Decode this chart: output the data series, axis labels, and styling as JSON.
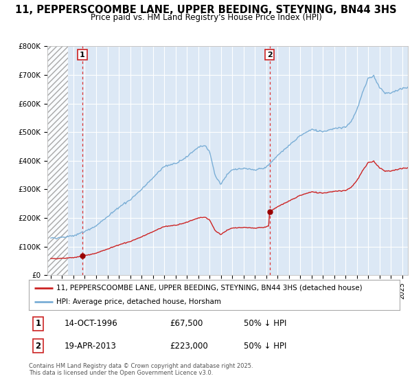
{
  "title": "11, PEPPERSCOOMBE LANE, UPPER BEEDING, STEYNING, BN44 3HS",
  "subtitle": "Price paid vs. HM Land Registry's House Price Index (HPI)",
  "ylim": [
    0,
    800000
  ],
  "yticks": [
    0,
    100000,
    200000,
    300000,
    400000,
    500000,
    600000,
    700000,
    800000
  ],
  "ytick_labels": [
    "£0",
    "£100K",
    "£200K",
    "£300K",
    "£400K",
    "£500K",
    "£600K",
    "£700K",
    "£800K"
  ],
  "xlim_start": 1993.7,
  "xlim_end": 2025.5,
  "hatch_end": 1995.5,
  "sale1_date": 1996.79,
  "sale1_price": 67500,
  "sale2_date": 2013.3,
  "sale2_price": 223000,
  "red_line_color": "#cc2222",
  "blue_line_color": "#7aaed6",
  "sale_dot_color": "#990000",
  "vline_color": "#dd3333",
  "legend_label_red": "11, PEPPERSCOOMBE LANE, UPPER BEEDING, STEYNING, BN44 3HS (detached house)",
  "legend_label_blue": "HPI: Average price, detached house, Horsham",
  "footnote": "Contains HM Land Registry data © Crown copyright and database right 2025.\nThis data is licensed under the Open Government Licence v3.0.",
  "table_row1": [
    "1",
    "14-OCT-1996",
    "£67,500",
    "50% ↓ HPI"
  ],
  "table_row2": [
    "2",
    "19-APR-2013",
    "£223,000",
    "50% ↓ HPI"
  ],
  "background_color": "#ffffff",
  "plot_bg_color": "#dce8f5"
}
